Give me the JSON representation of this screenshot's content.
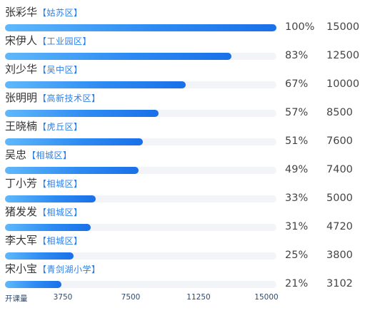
{
  "chart_data": {
    "type": "bar",
    "orientation": "horizontal",
    "xlabel": "开课量",
    "xlim": [
      0,
      15000
    ],
    "x_ticks": [
      "3750",
      "7500",
      "11250",
      "15000"
    ],
    "x_tick_values": [
      3750,
      7500,
      11250,
      15000
    ],
    "colors": {
      "bar_start": "#5fb8fb",
      "bar_end": "#1a70e8",
      "track": "#f3f4f8",
      "region_text": "#2f7fe6"
    },
    "rows": [
      {
        "name": "张彩华",
        "region": "【姑苏区】",
        "percent": "100%",
        "value": 15000
      },
      {
        "name": "宋伊人",
        "region": "【工业园区】",
        "percent": "83%",
        "value": 12500
      },
      {
        "name": "刘少华",
        "region": "【吴中区】",
        "percent": "67%",
        "value": 10000
      },
      {
        "name": "张明明",
        "region": "【高新技术区】",
        "percent": "57%",
        "value": 8500
      },
      {
        "name": "王晓楠",
        "region": "【虎丘区】",
        "percent": "51%",
        "value": 7600
      },
      {
        "name": "吴忠",
        "region": "【相城区】",
        "percent": "49%",
        "value": 7400
      },
      {
        "name": "丁小芳",
        "region": "【相城区】",
        "percent": "33%",
        "value": 5000
      },
      {
        "name": "猪发发",
        "region": "【相城区】",
        "percent": "31%",
        "value": 4720
      },
      {
        "name": "李大军",
        "region": "【相城区】",
        "percent": "25%",
        "value": 3800
      },
      {
        "name": "宋小宝",
        "region": "【青剑湖小学】",
        "percent": "21%",
        "value": 3102
      }
    ]
  }
}
